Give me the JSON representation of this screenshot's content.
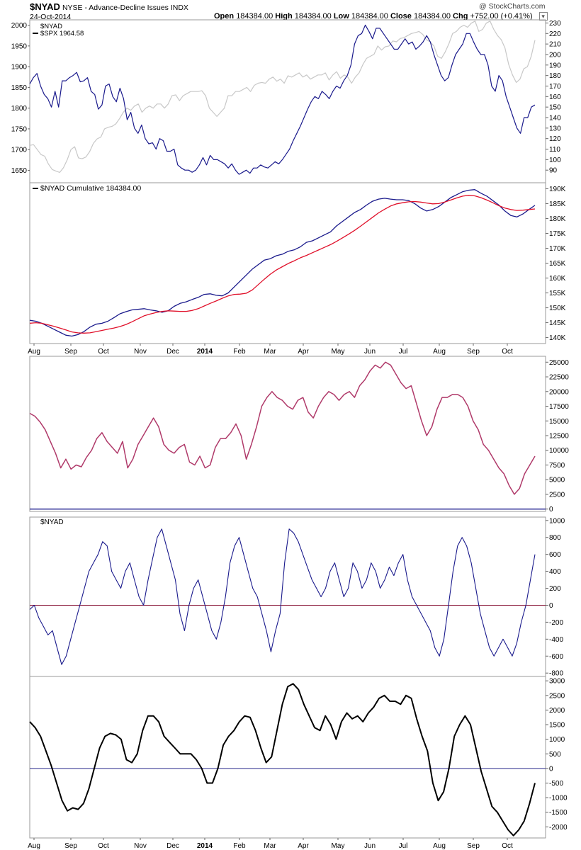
{
  "header": {
    "symbol": "$NYAD",
    "description": "NYSE - Advance-Decline Issues INDX",
    "date": "24-Oct-2014",
    "open_label": "Open",
    "open_value": "184384.00",
    "high_label": "High",
    "high_value": "184384.00",
    "low_label": "Low",
    "low_value": "184384.00",
    "close_label": "Close",
    "close_value": "184384.00",
    "chg_label": "Chg",
    "chg_value": "+752.00 (+0.41%)",
    "credit": "@ StockCharts.com"
  },
  "chart_data": [
    {
      "type": "line",
      "panel": "price",
      "legend": [
        "$NYAD",
        "$SPX 1964.58"
      ],
      "left_axis": {
        "ticks": [
          1650,
          1700,
          1750,
          1800,
          1850,
          1900,
          1950,
          2000
        ],
        "range": [
          1620,
          2013
        ],
        "series": "$SPX"
      },
      "right_axis": {
        "ticks": [
          90,
          100,
          110,
          120,
          130,
          140,
          150,
          160,
          170,
          180,
          190,
          200,
          210,
          220,
          230
        ],
        "range": [
          78,
          233
        ],
        "series": "$NYAD"
      },
      "series": [
        {
          "name": "$NYAD",
          "color": "#1a1a8c",
          "axis": "right",
          "values": [
            172,
            178,
            182,
            170,
            162,
            158,
            150,
            165,
            150,
            175,
            175,
            178,
            180,
            183,
            174,
            175,
            178,
            165,
            162,
            148,
            152,
            170,
            172,
            160,
            155,
            168,
            158,
            138,
            145,
            130,
            125,
            133,
            120,
            115,
            116,
            110,
            120,
            118,
            108,
            108,
            110,
            95,
            92,
            90,
            90,
            88,
            90,
            95,
            102,
            95,
            104,
            100,
            100,
            98,
            96,
            92,
            96,
            90,
            86,
            88,
            90,
            87,
            92,
            92,
            95,
            93,
            92,
            95,
            98,
            96,
            100,
            105,
            110,
            118,
            125,
            132,
            140,
            148,
            155,
            160,
            158,
            165,
            162,
            158,
            165,
            170,
            168,
            175,
            180,
            190,
            210,
            218,
            220,
            228,
            222,
            215,
            225,
            225,
            220,
            215,
            210,
            205,
            205,
            210,
            215,
            210,
            212,
            205,
            208,
            212,
            218,
            212,
            200,
            190,
            180,
            175,
            178,
            190,
            200,
            205,
            210,
            220,
            220,
            212,
            205,
            200,
            200,
            190,
            170,
            165,
            180,
            175,
            160,
            150,
            140,
            130,
            125,
            140,
            140,
            150,
            152
          ]
        },
        {
          "name": "$SPX",
          "color": "#c8c8c8",
          "axis": "left",
          "values": [
            1710,
            1712,
            1700,
            1688,
            1684,
            1665,
            1652,
            1648,
            1645,
            1656,
            1675,
            1700,
            1707,
            1680,
            1678,
            1682,
            1695,
            1715,
            1726,
            1730,
            1750,
            1754,
            1756,
            1762,
            1775,
            1790,
            1800,
            1795,
            1805,
            1810,
            1790,
            1800,
            1805,
            1800,
            1810,
            1810,
            1800,
            1810,
            1830,
            1832,
            1818,
            1830,
            1835,
            1840,
            1840,
            1840,
            1842,
            1830,
            1800,
            1790,
            1780,
            1790,
            1800,
            1830,
            1830,
            1840,
            1840,
            1845,
            1850,
            1840,
            1855,
            1860,
            1862,
            1860,
            1870,
            1875,
            1865,
            1870,
            1860,
            1878,
            1875,
            1880,
            1885,
            1875,
            1880,
            1870,
            1875,
            1880,
            1880,
            1885,
            1868,
            1880,
            1888,
            1872,
            1880,
            1875,
            1860,
            1875,
            1885,
            1905,
            1920,
            1925,
            1930,
            1950,
            1940,
            1948,
            1950,
            1962,
            1960,
            1968,
            1970,
            1975,
            1980,
            1982,
            1985,
            1978,
            1965,
            1960,
            1950,
            1925,
            1920,
            1935,
            1955,
            1980,
            1985,
            1995,
            2000,
            1995,
            2005,
            2010,
            1985,
            1990,
            2005,
            2010,
            1990,
            1975,
            1965,
            1945,
            1905,
            1880,
            1862,
            1870,
            1895,
            1900,
            1925,
            1964
          ]
        }
      ]
    },
    {
      "type": "line",
      "panel": "cumulative",
      "legend": [
        "$NYAD Cumulative 184384.00"
      ],
      "right_axis": {
        "tick_labels": [
          "140K",
          "145K",
          "150K",
          "155K",
          "160K",
          "165K",
          "170K",
          "175K",
          "180K",
          "185K",
          "190K"
        ],
        "range": [
          138000,
          192000
        ]
      },
      "x_tick_labels": [
        "Aug",
        "Sep",
        "Oct",
        "Nov",
        "Dec",
        "2014",
        "Feb",
        "Mar",
        "Apr",
        "May",
        "Jun",
        "Jul",
        "Aug",
        "Sep",
        "Oct"
      ],
      "series": [
        {
          "name": "$NYAD Cumulative",
          "color": "#1a1a8c",
          "values": [
            145800,
            145500,
            144800,
            143800,
            142800,
            141800,
            140800,
            140500,
            141000,
            142000,
            143500,
            144500,
            144800,
            145500,
            146700,
            148000,
            148700,
            149300,
            149500,
            149700,
            149300,
            149000,
            148500,
            149000,
            150500,
            151500,
            152000,
            152800,
            153500,
            154500,
            154700,
            154200,
            154000,
            155000,
            157000,
            159000,
            161000,
            163000,
            164500,
            166000,
            166500,
            167500,
            168000,
            169000,
            169500,
            170500,
            172000,
            172500,
            173500,
            174500,
            175500,
            177500,
            179000,
            180500,
            182000,
            183000,
            184500,
            185800,
            186500,
            186800,
            186500,
            186300,
            186300,
            186000,
            185000,
            183500,
            182500,
            183000,
            184000,
            185500,
            187000,
            188000,
            189000,
            189500,
            189700,
            188500,
            187500,
            186000,
            184500,
            182500,
            181000,
            180500,
            181500,
            183000,
            184400
          ]
        },
        {
          "name": "Moving Average",
          "color": "#e0102a",
          "values": [
            144800,
            145000,
            144800,
            144300,
            143800,
            143200,
            142600,
            141900,
            141600,
            141500,
            141600,
            142000,
            142400,
            142800,
            143200,
            143700,
            144400,
            145300,
            146300,
            147300,
            147900,
            148400,
            148800,
            149000,
            148900,
            148800,
            148800,
            149100,
            149700,
            150600,
            151500,
            152300,
            153200,
            154000,
            154500,
            154600,
            154900,
            156000,
            157800,
            159600,
            161300,
            162700,
            163800,
            164900,
            165800,
            166800,
            167600,
            168500,
            169400,
            170300,
            171200,
            172300,
            173500,
            174700,
            176000,
            177400,
            178900,
            180400,
            181900,
            183100,
            184200,
            184900,
            185300,
            185600,
            185700,
            185500,
            185200,
            184900,
            185000,
            185500,
            186200,
            186900,
            187500,
            187800,
            187600,
            187000,
            186200,
            185300,
            184300,
            183500,
            183000,
            182700,
            182800,
            183000,
            183200
          ]
        }
      ]
    },
    {
      "type": "line",
      "panel": "oscillator-1",
      "right_axis": {
        "tick_labels": [
          "0",
          "2500",
          "5000",
          "7500",
          "10000",
          "12500",
          "15000",
          "17500",
          "20000",
          "22500",
          "25000"
        ],
        "range": [
          -400,
          26000
        ]
      },
      "series": [
        {
          "name": "Oscillator",
          "color": "#b03a6a",
          "values": [
            16300,
            15800,
            14800,
            13500,
            11500,
            9500,
            7000,
            8500,
            6800,
            7500,
            7200,
            8800,
            10000,
            12000,
            13000,
            11500,
            10500,
            9500,
            11500,
            7000,
            8500,
            11000,
            12500,
            14000,
            15500,
            14000,
            11000,
            10000,
            9500,
            10500,
            11000,
            8000,
            7500,
            9000,
            7000,
            7500,
            10500,
            12000,
            12000,
            13000,
            14500,
            12500,
            8500,
            11000,
            14000,
            17500,
            19000,
            20000,
            19000,
            18500,
            17500,
            17000,
            18500,
            19000,
            16500,
            15500,
            17500,
            19000,
            20000,
            19500,
            18500,
            19500,
            20000,
            19000,
            21000,
            22000,
            23500,
            24500,
            24000,
            25000,
            24500,
            23000,
            21500,
            20500,
            21000,
            18000,
            15000,
            12500,
            14000,
            17000,
            19000,
            19000,
            19500,
            19500,
            19000,
            17500,
            15000,
            13500,
            11000,
            10000,
            8500,
            7000,
            6000,
            4000,
            2500,
            3500,
            6000,
            7500,
            9000
          ]
        }
      ]
    },
    {
      "type": "line",
      "panel": "oscillator-2",
      "legend": [
        "$NYAD"
      ],
      "right_axis": {
        "tick_labels": [
          "-800",
          "-600",
          "-400",
          "-200",
          "0",
          "200",
          "400",
          "600",
          "800",
          "1000"
        ],
        "range": [
          -840,
          1040
        ]
      },
      "series": [
        {
          "name": "$NYAD",
          "color": "#1a1a8c",
          "values": [
            -50,
            0,
            -150,
            -250,
            -350,
            -300,
            -500,
            -700,
            -600,
            -400,
            -200,
            0,
            200,
            400,
            500,
            600,
            750,
            700,
            400,
            300,
            200,
            400,
            500,
            300,
            100,
            0,
            300,
            550,
            800,
            900,
            700,
            500,
            300,
            -100,
            -300,
            0,
            200,
            300,
            100,
            -100,
            -300,
            -400,
            -200,
            100,
            500,
            700,
            800,
            600,
            400,
            200,
            100,
            -100,
            -300,
            -550,
            -300,
            -100,
            500,
            900,
            850,
            750,
            600,
            450,
            300,
            200,
            100,
            200,
            400,
            500,
            300,
            100,
            200,
            500,
            400,
            200,
            300,
            500,
            400,
            200,
            300,
            450,
            350,
            500,
            600,
            300,
            100,
            0,
            -100,
            -200,
            -300,
            -500,
            -600,
            -400,
            0,
            400,
            700,
            800,
            700,
            500,
            200,
            -100,
            -300,
            -500,
            -600,
            -500,
            -400,
            -500,
            -600,
            -450,
            -200,
            0,
            300,
            600
          ]
        },
        {
          "name": "Zero Line",
          "color": "#8b1a3a",
          "values": [
            0
          ]
        }
      ]
    },
    {
      "type": "line",
      "panel": "oscillator-3",
      "right_axis": {
        "tick_labels": [
          "-2000",
          "-1500",
          "-1000",
          "-500",
          "0",
          "500",
          "1000",
          "1500",
          "2000",
          "2500",
          "3000"
        ],
        "range": [
          -2380,
          3150
        ]
      },
      "x_tick_labels": [
        "Aug",
        "Sep",
        "Oct",
        "Nov",
        "Dec",
        "2014",
        "Feb",
        "Mar",
        "Apr",
        "May",
        "Jun",
        "Jul",
        "Aug",
        "Sep",
        "Oct"
      ],
      "series": [
        {
          "name": "Oscillator",
          "color": "#000000",
          "values": [
            1600,
            1400,
            1100,
            600,
            100,
            -500,
            -1100,
            -1450,
            -1350,
            -1400,
            -1200,
            -700,
            0,
            700,
            1100,
            1200,
            1150,
            1000,
            300,
            200,
            500,
            1300,
            1800,
            1800,
            1600,
            1100,
            900,
            700,
            500,
            500,
            500,
            300,
            0,
            -500,
            -500,
            0,
            800,
            1100,
            1300,
            1600,
            1800,
            1750,
            1300,
            700,
            200,
            400,
            1300,
            2200,
            2800,
            2900,
            2700,
            2200,
            1800,
            1400,
            1300,
            1800,
            1500,
            1000,
            1600,
            1900,
            1700,
            1800,
            1600,
            1900,
            2100,
            2400,
            2500,
            2300,
            2300,
            2200,
            2500,
            2400,
            1700,
            1100,
            600,
            -500,
            -1100,
            -800,
            0,
            1100,
            1500,
            1800,
            1500,
            700,
            -100,
            -700,
            -1300,
            -1500,
            -1800,
            -2100,
            -2300,
            -2100,
            -1800,
            -1200,
            -500
          ]
        },
        {
          "name": "Zero Line",
          "color": "#2a2a8c",
          "values": [
            0
          ]
        }
      ]
    }
  ]
}
